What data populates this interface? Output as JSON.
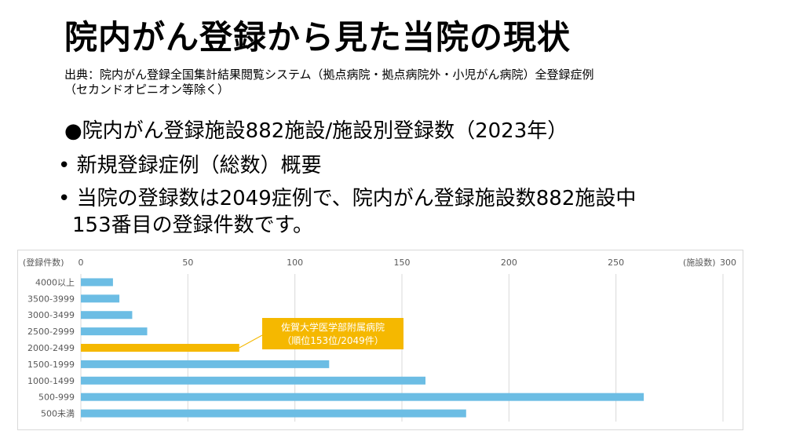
{
  "slide": {
    "title": "院内がん登録から見た当院の現状",
    "source_line1": "出典：院内がん登録全国集計結果閲覧システム（拠点病院・拠点病院外・小児がん病院）全登録症例",
    "source_line2": "（セカンドオピニオン等除く）",
    "bullet1": "●院内がん登録施設882施設/施設別登録数（2023年）",
    "bullet2": "• 新規登録症例（総数）概要",
    "bullet3_line1": "• 当院の登録数は2049症例で、院内がん登録施設数882施設中",
    "bullet3_line2": "153番目の登録件数です。"
  },
  "chart_data": {
    "type": "bar",
    "orientation": "horizontal",
    "categories": [
      "4000以上",
      "3500-3999",
      "3000-3499",
      "2500-2999",
      "2000-2499",
      "1500-1999",
      "1000-1499",
      "500-999",
      "500未満"
    ],
    "values": [
      15,
      18,
      24,
      31,
      74,
      116,
      161,
      263,
      180
    ],
    "highlight_index": 4,
    "xlim": [
      0,
      300
    ],
    "xticks": [
      0,
      50,
      100,
      150,
      200,
      250,
      300
    ],
    "xlabel": "(施設数)",
    "ylabel": "(登録件数)",
    "grid": "vertical",
    "colors": {
      "bar": "#6cbde4",
      "highlight": "#f5b800",
      "grid": "#d9d9d9"
    },
    "annotation": {
      "line1": "佐賀大学医学部附属病院",
      "line2": "（順位153位/2049件）",
      "target_index": 4
    }
  }
}
